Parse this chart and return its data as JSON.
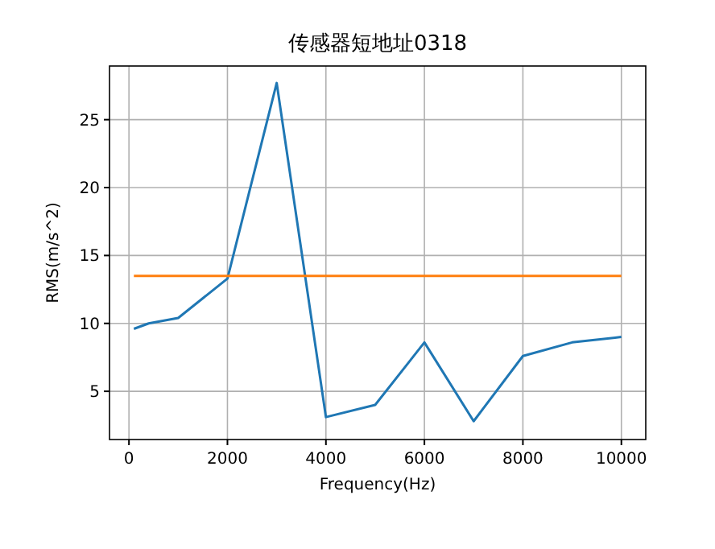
{
  "chart_data": {
    "type": "line",
    "title": "传感器短地址0318",
    "xlabel": "Frequency(Hz)",
    "ylabel": "RMS(m/s^2)",
    "xlim": [
      -395,
      10495
    ],
    "ylim": [
      1.45,
      28.95
    ],
    "xticks": [
      0,
      2000,
      4000,
      6000,
      8000,
      10000
    ],
    "yticks": [
      5,
      10,
      15,
      20,
      25
    ],
    "grid": true,
    "series": [
      {
        "color": "#1f77b4",
        "x": [
          100,
          400,
          1000,
          2000,
          3000,
          4000,
          5000,
          6000,
          7000,
          8000,
          9000,
          10000
        ],
        "values": [
          9.6,
          10.0,
          10.4,
          13.3,
          27.7,
          3.1,
          4.0,
          8.6,
          2.8,
          7.6,
          8.6,
          9.0
        ]
      },
      {
        "color": "#ff7f0e",
        "x": [
          100,
          10000
        ],
        "values": [
          13.5,
          13.5
        ]
      }
    ]
  }
}
